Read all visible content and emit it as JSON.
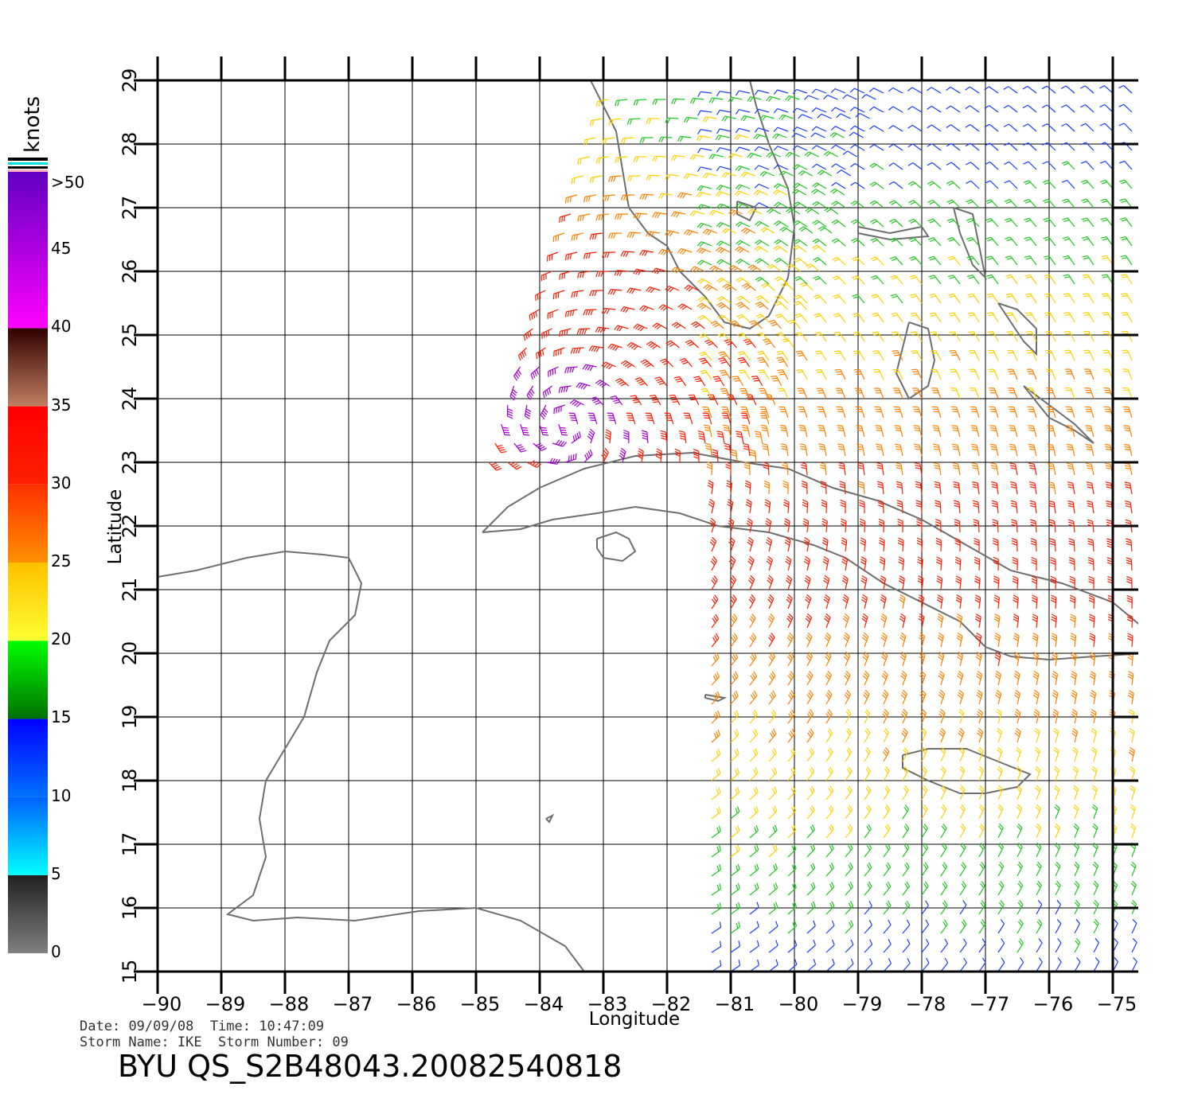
{
  "map": {
    "lon_range": [
      -90,
      -75
    ],
    "lat_range": [
      15,
      29
    ],
    "lon_ticks": [
      "−90",
      "−89",
      "−88",
      "−87",
      "−86",
      "−85",
      "−84",
      "−83",
      "−82",
      "−81",
      "−80",
      "−79",
      "−78",
      "−77",
      "−76",
      "−75"
    ],
    "lat_ticks": [
      "15",
      "16",
      "17",
      "18",
      "19",
      "20",
      "21",
      "22",
      "23",
      "24",
      "25",
      "26",
      "27",
      "28",
      "29"
    ],
    "xlabel": "Longitude",
    "ylabel": "Latitude",
    "grid": true,
    "coastline_color": "#6e6e6e"
  },
  "colorbar": {
    "unit": "knots",
    "labels": [
      ">50",
      "45",
      "40",
      "35",
      "30",
      "25",
      "20",
      "15",
      "10",
      "5",
      "0"
    ],
    "stops": [
      {
        "from": 0,
        "to": 5,
        "colors": [
          "#808080",
          "#202020"
        ]
      },
      {
        "from": 5,
        "to": 10,
        "colors": [
          "#00ffff",
          "#0060ff"
        ]
      },
      {
        "from": 10,
        "to": 15,
        "colors": [
          "#0070ff",
          "#0000ff"
        ]
      },
      {
        "from": 15,
        "to": 20,
        "colors": [
          "#007000",
          "#00ff00"
        ]
      },
      {
        "from": 20,
        "to": 25,
        "colors": [
          "#ffff30",
          "#ffc000"
        ]
      },
      {
        "from": 25,
        "to": 30,
        "colors": [
          "#ff9000",
          "#ff3000"
        ]
      },
      {
        "from": 30,
        "to": 35,
        "colors": [
          "#ff2000",
          "#ff0000"
        ]
      },
      {
        "from": 35,
        "to": 40,
        "colors": [
          "#c08060",
          "#300000"
        ]
      },
      {
        "from": 40,
        "to": 50,
        "colors": [
          "#ff00ff",
          "#6000c0"
        ]
      }
    ]
  },
  "footer": {
    "date_label": "Date:",
    "date": "09/09/08",
    "time_label": "Time:",
    "time": "10:47:09",
    "storm_name_label": "Storm Name:",
    "storm_name": "IKE",
    "storm_number_label": "Storm Number:",
    "storm_number": "09",
    "product_id": "BYU  QS_S2B48043.20082540818"
  }
}
